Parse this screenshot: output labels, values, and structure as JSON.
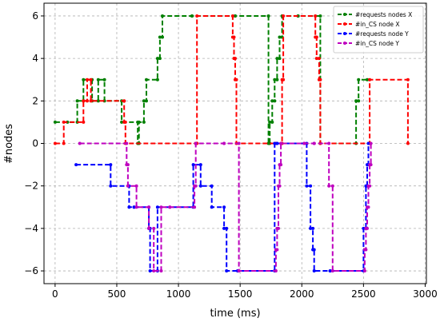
{
  "chart_data": {
    "type": "line",
    "title": "",
    "xlabel": "time (ms)",
    "ylabel": "#nodes",
    "xlim": [
      -90,
      3010
    ],
    "ylim": [
      -6.6,
      6.6
    ],
    "x_ticks": [
      0,
      500,
      1000,
      1500,
      2000,
      2500,
      3000
    ],
    "y_ticks": [
      -6,
      -4,
      -2,
      0,
      2,
      4,
      6
    ],
    "x_tick_labels": [
      "0",
      "500",
      "1000",
      "1500",
      "2000",
      "2500",
      "3000"
    ],
    "y_tick_labels": [
      "−6",
      "−4",
      "−2",
      "0",
      "2",
      "4",
      "6"
    ],
    "grid": true,
    "legend_position": "top-right",
    "series": [
      {
        "name": "#requests nodes X",
        "color": "#008000",
        "points": [
          [
            0,
            1
          ],
          [
            100,
            1
          ],
          [
            180,
            1
          ],
          [
            180,
            2
          ],
          [
            230,
            2
          ],
          [
            230,
            3
          ],
          [
            300,
            3
          ],
          [
            300,
            2
          ],
          [
            350,
            2
          ],
          [
            350,
            3
          ],
          [
            400,
            3
          ],
          [
            400,
            2
          ],
          [
            540,
            2
          ],
          [
            540,
            1
          ],
          [
            670,
            1
          ],
          [
            670,
            0
          ],
          [
            680,
            0
          ],
          [
            680,
            1
          ],
          [
            720,
            1
          ],
          [
            720,
            2
          ],
          [
            740,
            2
          ],
          [
            740,
            3
          ],
          [
            830,
            3
          ],
          [
            830,
            4
          ],
          [
            850,
            4
          ],
          [
            850,
            5
          ],
          [
            870,
            5
          ],
          [
            870,
            6
          ],
          [
            1110,
            6
          ],
          [
            1110,
            6
          ],
          [
            1460,
            6
          ],
          [
            1460,
            6
          ],
          [
            1730,
            6
          ],
          [
            1730,
            0
          ],
          [
            1740,
            0
          ],
          [
            1740,
            1
          ],
          [
            1760,
            1
          ],
          [
            1760,
            2
          ],
          [
            1780,
            2
          ],
          [
            1780,
            3
          ],
          [
            1800,
            3
          ],
          [
            1800,
            4
          ],
          [
            1820,
            4
          ],
          [
            1820,
            5
          ],
          [
            1840,
            5
          ],
          [
            1840,
            6
          ],
          [
            1970,
            6
          ],
          [
            1970,
            6
          ],
          [
            2150,
            6
          ],
          [
            2150,
            0
          ],
          [
            2440,
            0
          ],
          [
            2440,
            2
          ],
          [
            2460,
            2
          ],
          [
            2460,
            3
          ],
          [
            2530,
            3
          ]
        ]
      },
      {
        "name": "#in_CS node X",
        "color": "#ff0000",
        "points": [
          [
            0,
            0
          ],
          [
            70,
            0
          ],
          [
            70,
            1
          ],
          [
            230,
            1
          ],
          [
            230,
            2
          ],
          [
            260,
            2
          ],
          [
            260,
            3
          ],
          [
            290,
            3
          ],
          [
            290,
            2
          ],
          [
            560,
            2
          ],
          [
            560,
            1
          ],
          [
            570,
            1
          ],
          [
            570,
            0
          ],
          [
            1140,
            0
          ],
          [
            1140,
            0
          ],
          [
            1150,
            0
          ],
          [
            1150,
            6
          ],
          [
            1440,
            6
          ],
          [
            1440,
            5
          ],
          [
            1450,
            5
          ],
          [
            1450,
            4
          ],
          [
            1460,
            4
          ],
          [
            1460,
            3
          ],
          [
            1470,
            3
          ],
          [
            1470,
            0
          ],
          [
            1790,
            0
          ],
          [
            1790,
            0
          ],
          [
            1840,
            0
          ],
          [
            1840,
            3
          ],
          [
            1850,
            3
          ],
          [
            1850,
            6
          ],
          [
            2110,
            6
          ],
          [
            2110,
            5
          ],
          [
            2120,
            5
          ],
          [
            2120,
            4
          ],
          [
            2140,
            4
          ],
          [
            2140,
            3
          ],
          [
            2150,
            3
          ],
          [
            2150,
            0
          ],
          [
            2550,
            0
          ],
          [
            2550,
            3
          ],
          [
            2860,
            3
          ],
          [
            2860,
            0
          ]
        ]
      },
      {
        "name": "#requests node Y",
        "color": "#0000ff",
        "points": [
          [
            170,
            -1
          ],
          [
            450,
            -1
          ],
          [
            450,
            -2
          ],
          [
            600,
            -2
          ],
          [
            600,
            -3
          ],
          [
            640,
            -3
          ],
          [
            640,
            -3
          ],
          [
            760,
            -3
          ],
          [
            760,
            -4
          ],
          [
            770,
            -4
          ],
          [
            770,
            -6
          ],
          [
            830,
            -6
          ],
          [
            830,
            -3
          ],
          [
            1120,
            -3
          ],
          [
            1120,
            -1
          ],
          [
            1180,
            -1
          ],
          [
            1180,
            -2
          ],
          [
            1270,
            -2
          ],
          [
            1270,
            -3
          ],
          [
            1370,
            -3
          ],
          [
            1370,
            -4
          ],
          [
            1390,
            -4
          ],
          [
            1390,
            -6
          ],
          [
            1480,
            -6
          ],
          [
            1480,
            -6
          ],
          [
            1780,
            -6
          ],
          [
            1780,
            0
          ],
          [
            1800,
            0
          ],
          [
            1800,
            0
          ],
          [
            2040,
            0
          ],
          [
            2040,
            -2
          ],
          [
            2070,
            -2
          ],
          [
            2070,
            -4
          ],
          [
            2090,
            -4
          ],
          [
            2090,
            -5
          ],
          [
            2100,
            -5
          ],
          [
            2100,
            -6
          ],
          [
            2230,
            -6
          ],
          [
            2230,
            -6
          ],
          [
            2500,
            -6
          ],
          [
            2500,
            -4
          ],
          [
            2520,
            -4
          ],
          [
            2520,
            -2
          ],
          [
            2530,
            -2
          ],
          [
            2530,
            -1
          ],
          [
            2540,
            -1
          ],
          [
            2540,
            0
          ]
        ]
      },
      {
        "name": "#in_CS node Y",
        "color": "#bf00bf",
        "points": [
          [
            200,
            0
          ],
          [
            580,
            0
          ],
          [
            580,
            -1
          ],
          [
            590,
            -1
          ],
          [
            590,
            -2
          ],
          [
            660,
            -2
          ],
          [
            660,
            -3
          ],
          [
            760,
            -3
          ],
          [
            760,
            -4
          ],
          [
            800,
            -4
          ],
          [
            800,
            -6
          ],
          [
            860,
            -6
          ],
          [
            860,
            -3
          ],
          [
            930,
            -3
          ],
          [
            930,
            -3
          ],
          [
            1130,
            -3
          ],
          [
            1130,
            -2
          ],
          [
            1140,
            -2
          ],
          [
            1140,
            0
          ],
          [
            1370,
            0
          ],
          [
            1370,
            0
          ],
          [
            1490,
            0
          ],
          [
            1490,
            -6
          ],
          [
            1790,
            -6
          ],
          [
            1790,
            -5
          ],
          [
            1800,
            -5
          ],
          [
            1800,
            -4
          ],
          [
            1810,
            -4
          ],
          [
            1810,
            -2
          ],
          [
            1820,
            -2
          ],
          [
            1820,
            -1
          ],
          [
            1830,
            -1
          ],
          [
            1830,
            0
          ],
          [
            2020,
            0
          ],
          [
            2020,
            0
          ],
          [
            2100,
            0
          ],
          [
            2100,
            0
          ],
          [
            2220,
            0
          ],
          [
            2220,
            -2
          ],
          [
            2250,
            -2
          ],
          [
            2250,
            -6
          ],
          [
            2510,
            -6
          ],
          [
            2510,
            -5
          ],
          [
            2520,
            -5
          ],
          [
            2520,
            -4
          ],
          [
            2530,
            -4
          ],
          [
            2530,
            -3
          ],
          [
            2540,
            -3
          ],
          [
            2540,
            -2
          ],
          [
            2550,
            -2
          ],
          [
            2550,
            -1
          ],
          [
            2560,
            -1
          ],
          [
            2560,
            0
          ]
        ]
      }
    ]
  }
}
